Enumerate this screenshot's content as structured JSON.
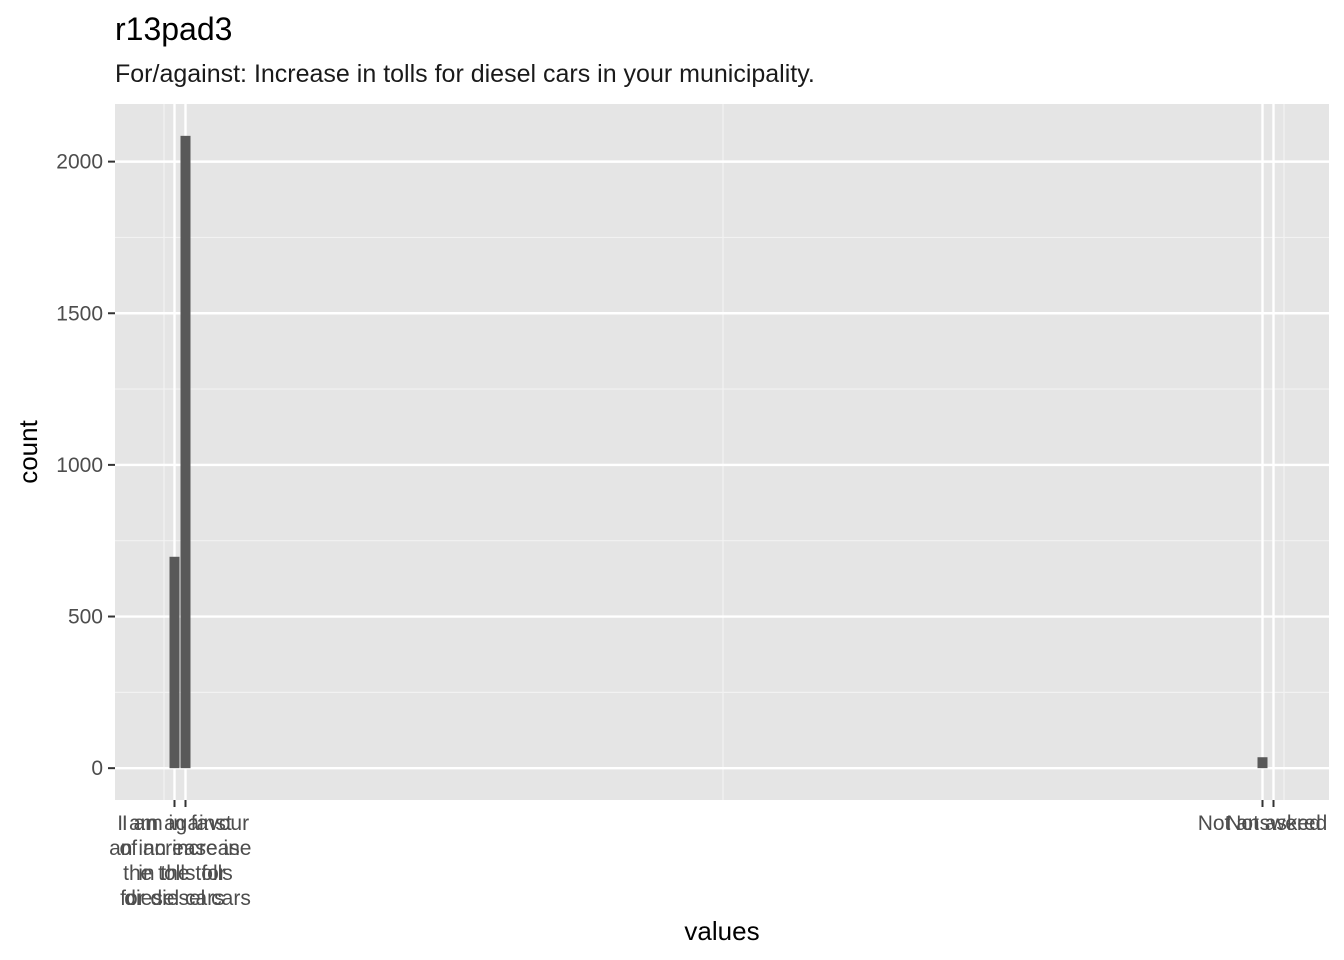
{
  "chart_data": {
    "type": "bar",
    "title": "r13pad3",
    "subtitle": "For/against: Increase in tolls for diesel cars in your municipality.",
    "xlabel": "values",
    "ylabel": "count",
    "ylim": [
      -105,
      2190
    ],
    "yticks": [
      0,
      500,
      1000,
      1500,
      2000
    ],
    "grid": true,
    "categories": [
      {
        "label": "I am against an increase in the tolls for diesel cars",
        "lines": [
          "I am against",
          "an increase in",
          "the tolls for",
          "diesel cars"
        ],
        "value": 697
      },
      {
        "label": "I am in favour of an increase in the tolls for diesel cars",
        "lines": [
          "I am in favour",
          "of an increase",
          "in the tolls",
          "for diesel cars"
        ],
        "value": 2085
      },
      {
        "label": "Not answered",
        "lines": [
          "Not answered"
        ],
        "value": 36
      },
      {
        "label": "Not asked",
        "lines": [
          "Not asked"
        ],
        "value": 0
      }
    ]
  }
}
